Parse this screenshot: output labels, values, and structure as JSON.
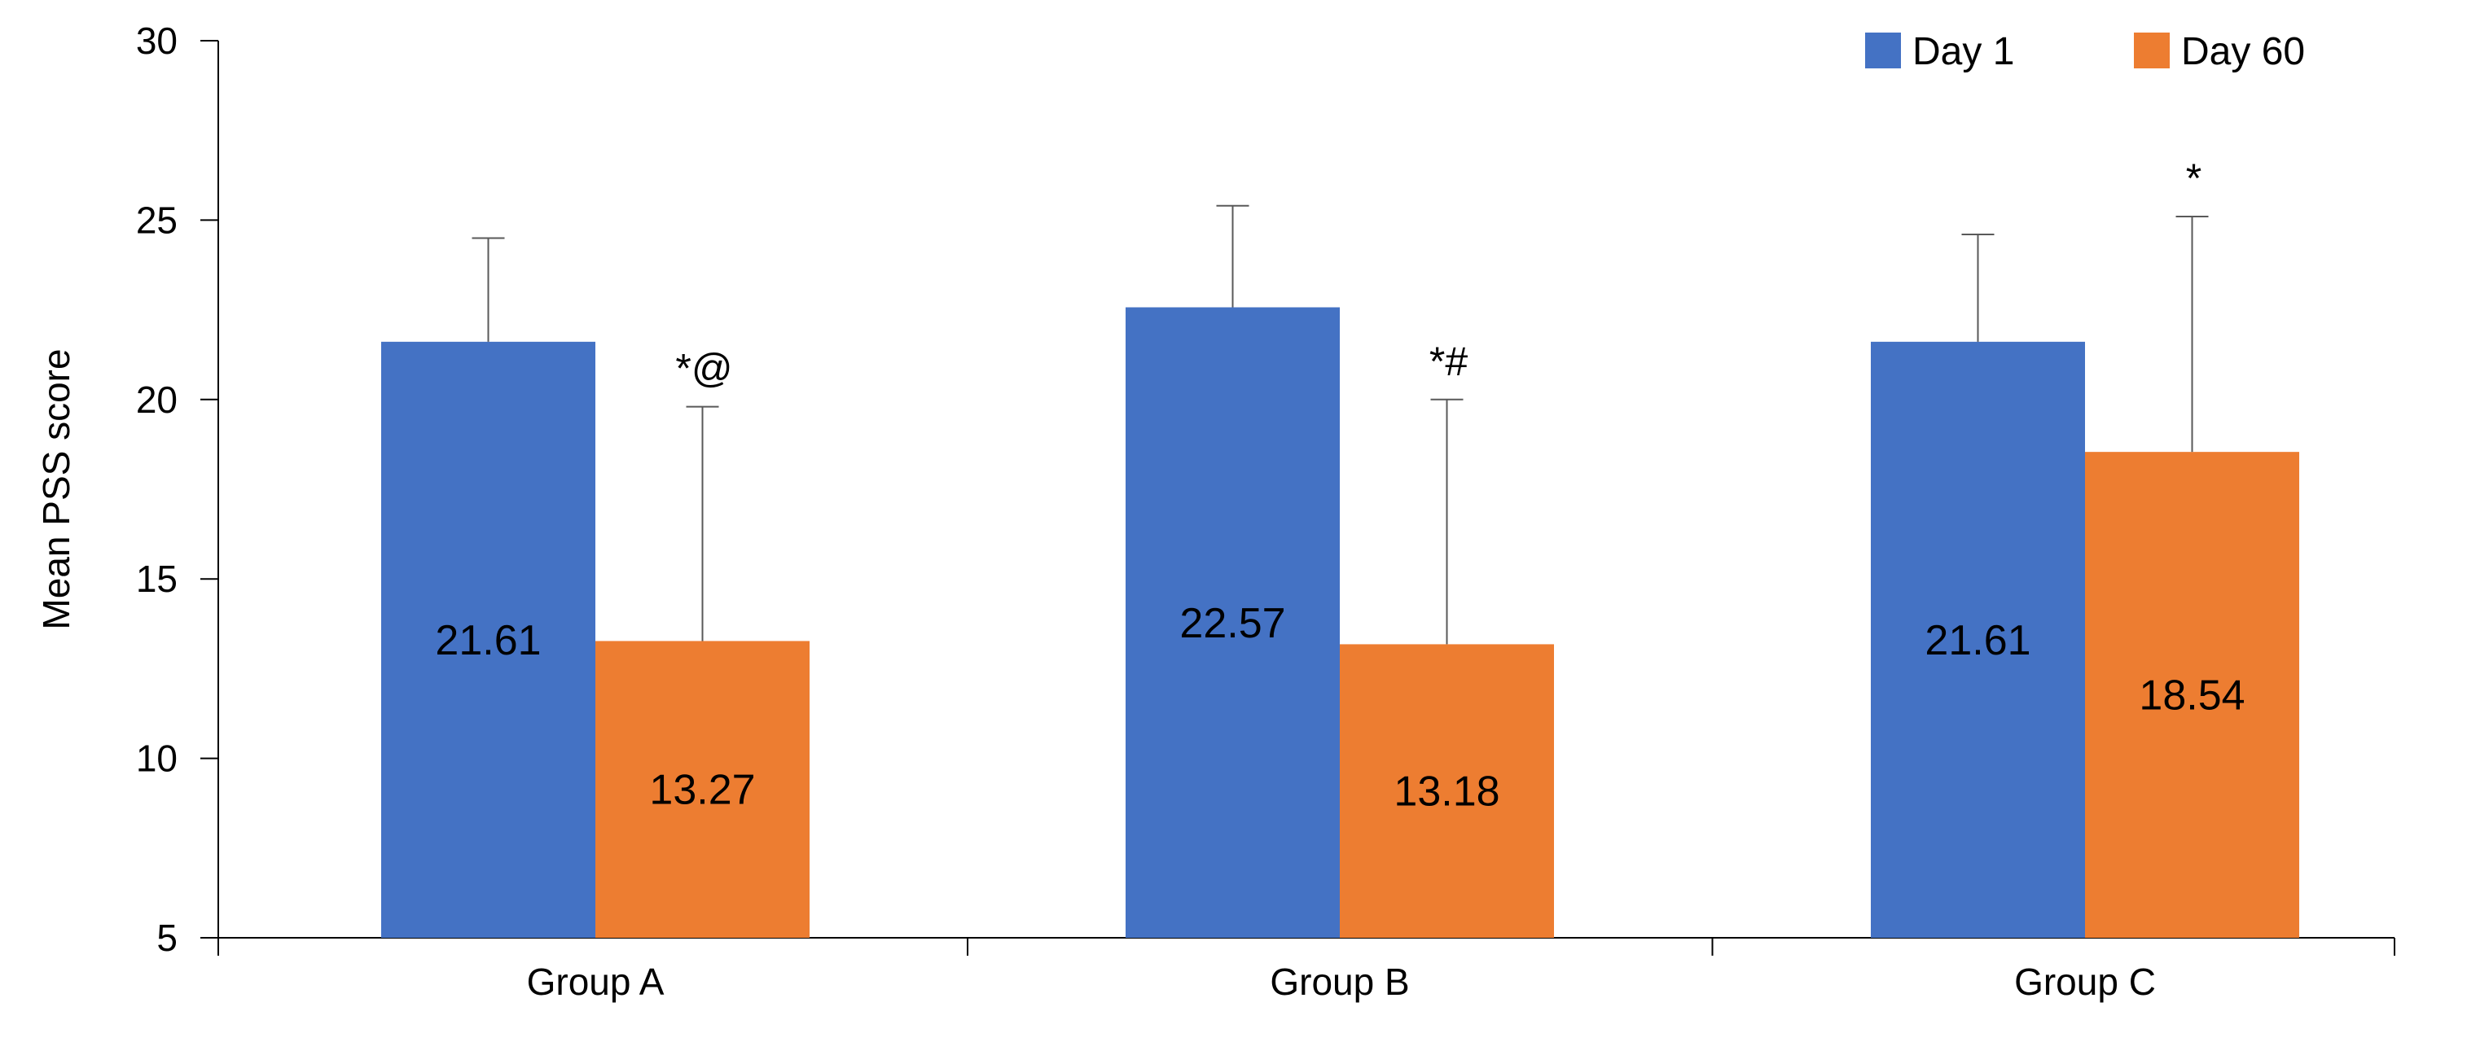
{
  "chart_data": {
    "type": "bar",
    "title": "",
    "xlabel": "",
    "ylabel": "Mean PSS score",
    "ylim": [
      5,
      30
    ],
    "yticks": [
      5,
      10,
      15,
      20,
      25,
      30
    ],
    "grid": false,
    "legend_position": "top-right",
    "categories": [
      "Group A",
      "Group B",
      "Group C"
    ],
    "series": [
      {
        "name": "Day 1",
        "color": "#4472C4",
        "values": [
          21.61,
          22.57,
          21.61
        ],
        "error_upper": [
          24.5,
          25.4,
          24.6
        ],
        "data_labels": [
          "21.61",
          "22.57",
          "21.61"
        ],
        "annotations": [
          "",
          "",
          ""
        ]
      },
      {
        "name": "Day 60",
        "color": "#ED7D31",
        "values": [
          13.27,
          13.18,
          18.54
        ],
        "error_upper": [
          19.8,
          20.0,
          25.1
        ],
        "data_labels": [
          "13.27",
          "13.18",
          "18.54"
        ],
        "annotations": [
          "*@",
          "*#",
          "*"
        ]
      }
    ]
  }
}
